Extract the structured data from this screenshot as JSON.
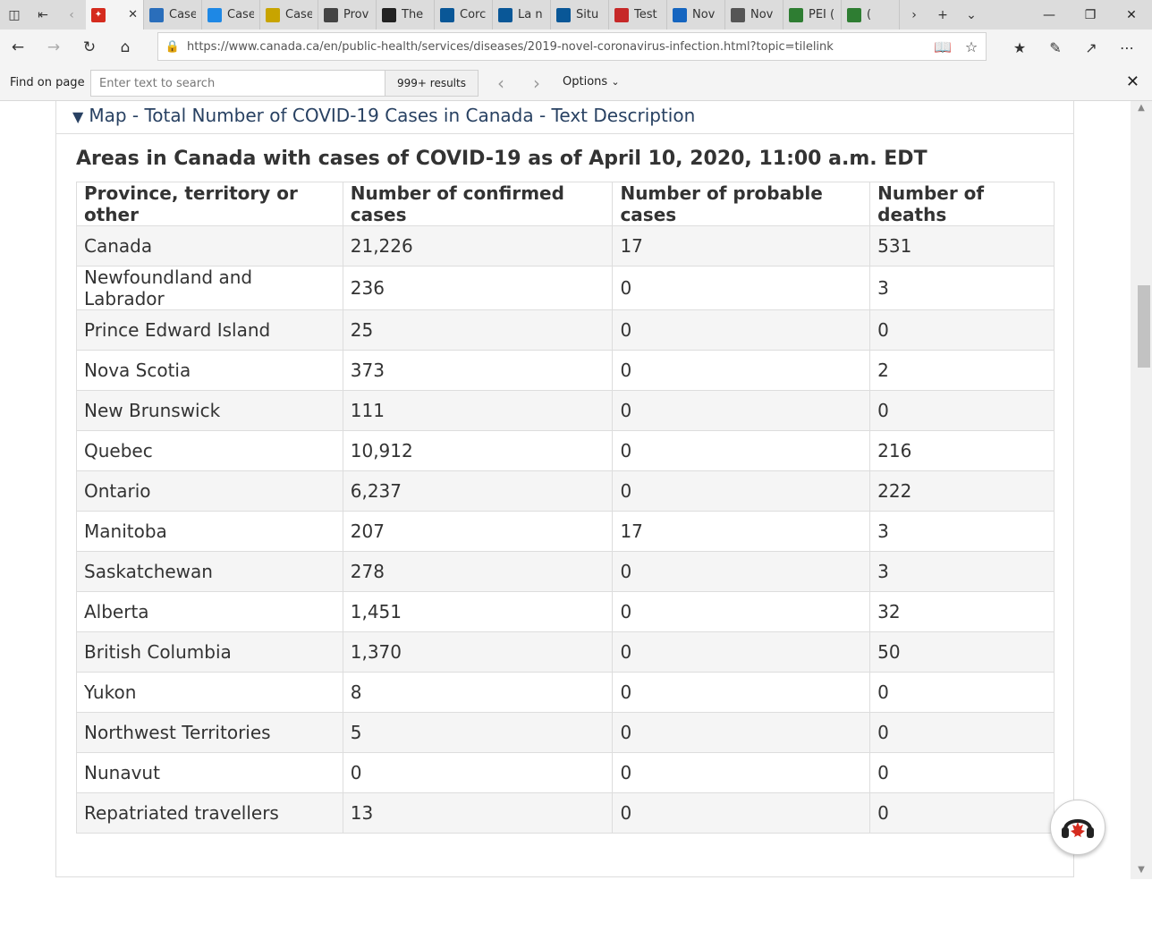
{
  "browser": {
    "tabs": [
      {
        "label": "",
        "icon": "maple-leaf-icon",
        "color": "#d52b1e",
        "active": true
      },
      {
        "label": "Case",
        "icon": "cbc-icon",
        "color": "#2a6ebb"
      },
      {
        "label": "Case",
        "icon": "chart-icon",
        "color": "#1e88e5"
      },
      {
        "label": "Case",
        "icon": "doc-icon",
        "color": "#c8a400"
      },
      {
        "label": "Prov",
        "icon": "bird-icon",
        "color": "#444444"
      },
      {
        "label": "The",
        "icon": "v-icon",
        "color": "#222222"
      },
      {
        "label": "Corc",
        "icon": "fleur-de-lis-icon",
        "color": "#095797"
      },
      {
        "label": "La n",
        "icon": "fleur-de-lis-icon",
        "color": "#095797"
      },
      {
        "label": "Situ",
        "icon": "fleur-de-lis-icon",
        "color": "#095797"
      },
      {
        "label": "Test",
        "icon": "feather-icon",
        "color": "#c62828"
      },
      {
        "label": "Nov",
        "icon": "ns-flag-icon",
        "color": "#1565c0"
      },
      {
        "label": "Nov",
        "icon": "nb-flag-icon",
        "color": "#555555"
      },
      {
        "label": "PEI (",
        "icon": "pei-icon",
        "color": "#2e7d32"
      },
      {
        "label": "(",
        "icon": "globe-icon",
        "color": "#2e7d32"
      }
    ],
    "url": "https://www.canada.ca/en/public-health/services/diseases/2019-novel-coronavirus-infection.html?topic=tilelink"
  },
  "findbar": {
    "label": "Find on page",
    "placeholder": "Enter text to search",
    "results": "999+ results",
    "options_label": "Options"
  },
  "page": {
    "summary_label": "Map - Total Number of COVID-19 Cases in Canada - Text Description",
    "caption": "Areas in Canada with cases of COVID-19 as of April 10, 2020, 11:00 a.m. EDT",
    "table": {
      "headers": [
        "Province, territory or other",
        "Number of confirmed cases",
        "Number of probable cases",
        "Number of deaths"
      ],
      "rows": [
        [
          "Canada",
          "21,226",
          "17",
          "531"
        ],
        [
          "Newfoundland and Labrador",
          "236",
          "0",
          "3"
        ],
        [
          "Prince Edward Island",
          "25",
          "0",
          "0"
        ],
        [
          "Nova Scotia",
          "373",
          "0",
          "2"
        ],
        [
          "New Brunswick",
          "111",
          "0",
          "0"
        ],
        [
          "Quebec",
          "10,912",
          "0",
          "216"
        ],
        [
          "Ontario",
          "6,237",
          "0",
          "222"
        ],
        [
          "Manitoba",
          "207",
          "17",
          "3"
        ],
        [
          "Saskatchewan",
          "278",
          "0",
          "3"
        ],
        [
          "Alberta",
          "1,451",
          "0",
          "32"
        ],
        [
          "British Columbia",
          "1,370",
          "0",
          "50"
        ],
        [
          "Yukon",
          "8",
          "0",
          "0"
        ],
        [
          "Northwest Territories",
          "5",
          "0",
          "0"
        ],
        [
          "Nunavut",
          "0",
          "0",
          "0"
        ],
        [
          "Repatriated travellers",
          "13",
          "0",
          "0"
        ]
      ]
    }
  },
  "colors": {
    "link": "#284162",
    "row_stripe": "#f5f5f5",
    "border": "#dddddd"
  }
}
